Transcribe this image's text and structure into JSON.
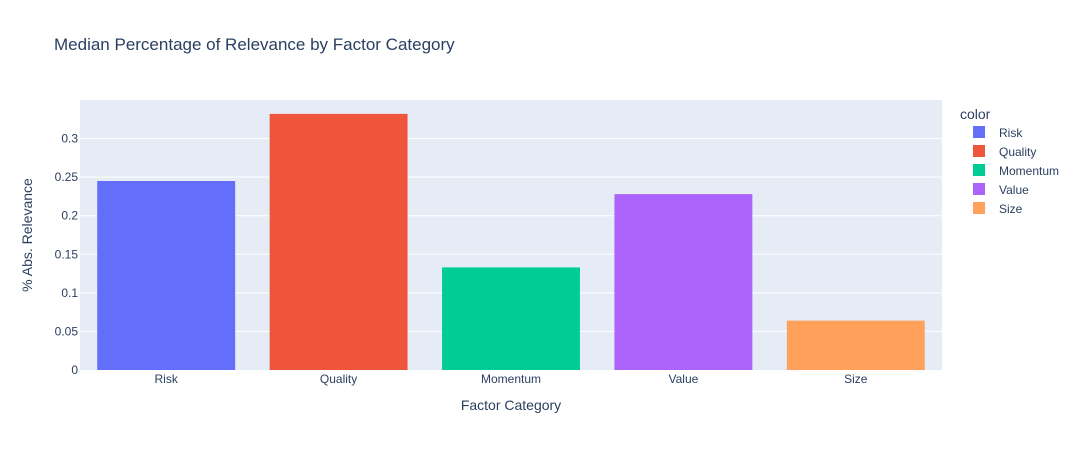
{
  "chart_data": {
    "type": "bar",
    "title": "Median Percentage of Relevance by Factor Category",
    "xlabel": "Factor Category",
    "ylabel": "% Abs. Relevance",
    "categories": [
      "Risk",
      "Quality",
      "Momentum",
      "Value",
      "Size"
    ],
    "values": [
      0.245,
      0.332,
      0.133,
      0.228,
      0.064
    ],
    "colors": [
      "#636efa",
      "#ef553b",
      "#00cc96",
      "#ab63fa",
      "#ffa15a"
    ],
    "ylim": [
      0,
      0.35
    ],
    "yticks": [
      "0",
      "0.05",
      "0.1",
      "0.15",
      "0.2",
      "0.25",
      "0.3"
    ],
    "grid": true,
    "plot_background": "#e5ecf6",
    "legend": {
      "title": "color",
      "placement": "right",
      "entries": [
        "Risk",
        "Quality",
        "Momentum",
        "Value",
        "Size"
      ]
    }
  }
}
